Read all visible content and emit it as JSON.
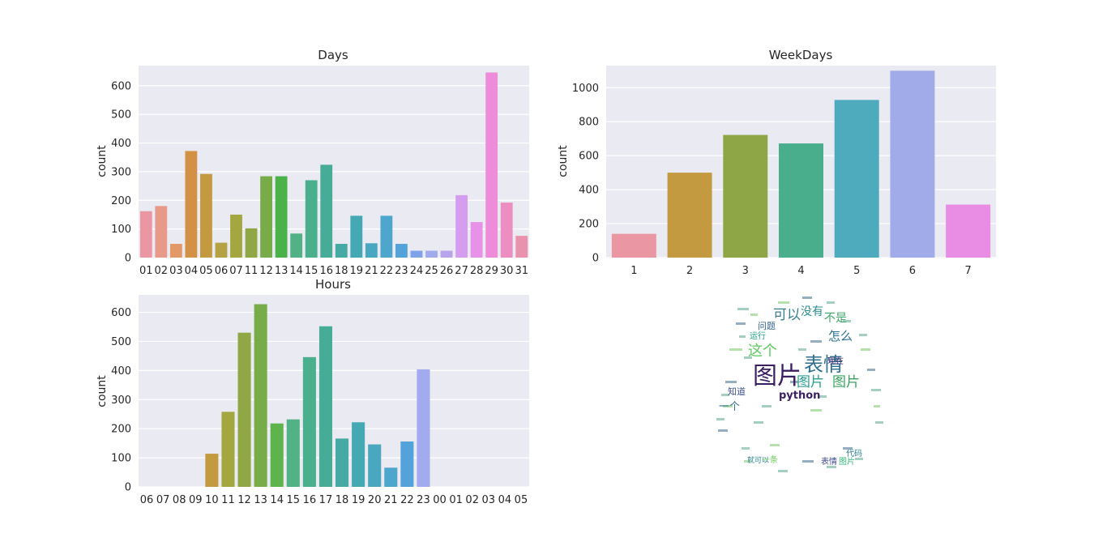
{
  "chart_data": [
    {
      "type": "bar",
      "title": "Days",
      "xlabel": "",
      "ylabel": "count",
      "ylim": [
        0,
        670
      ],
      "yticks": [
        0,
        100,
        200,
        300,
        400,
        500,
        600
      ],
      "categories": [
        "01",
        "02",
        "03",
        "04",
        "05",
        "06",
        "07",
        "11",
        "12",
        "13",
        "14",
        "15",
        "16",
        "18",
        "19",
        "21",
        "22",
        "23",
        "24",
        "25",
        "26",
        "27",
        "28",
        "29",
        "30",
        "31"
      ],
      "values": [
        162,
        180,
        48,
        372,
        292,
        52,
        150,
        102,
        284,
        284,
        84,
        270,
        324,
        48,
        146,
        50,
        146,
        48,
        24,
        24,
        24,
        218,
        124,
        646,
        192,
        76
      ],
      "colors": [
        "#ea96a3",
        "#e8998a",
        "#e39867",
        "#d39145",
        "#c39a40",
        "#b4a244",
        "#a4a63f",
        "#8fa744",
        "#78ac48",
        "#4bb24a",
        "#52b285",
        "#4aaf8d",
        "#46ac97",
        "#44aaa3",
        "#44a9b2",
        "#49a8bf",
        "#4ea6cc",
        "#54a2da",
        "#7ea3e8",
        "#a1abed",
        "#b8a4eb",
        "#d49df0",
        "#e791e8",
        "#ee8cd9",
        "#ec8ec2",
        "#ea92ad"
      ],
      "grid": true
    },
    {
      "type": "bar",
      "title": "WeekDays",
      "xlabel": "",
      "ylabel": "count",
      "ylim": [
        0,
        1130
      ],
      "yticks": [
        0,
        200,
        400,
        600,
        800,
        1000
      ],
      "categories": [
        "1",
        "2",
        "3",
        "4",
        "5",
        "6",
        "7"
      ],
      "values": [
        140,
        500,
        722,
        672,
        928,
        1100,
        312
      ],
      "colors": [
        "#ea96a3",
        "#c39a40",
        "#8ea645",
        "#48ae8b",
        "#4dabbd",
        "#a1abea",
        "#e88ce4"
      ],
      "grid": true
    },
    {
      "type": "bar",
      "title": "Hours",
      "xlabel": "",
      "ylabel": "count",
      "ylim": [
        0,
        660
      ],
      "yticks": [
        0,
        100,
        200,
        300,
        400,
        500,
        600
      ],
      "categories": [
        "06",
        "07",
        "08",
        "09",
        "10",
        "11",
        "12",
        "13",
        "14",
        "15",
        "16",
        "17",
        "18",
        "19",
        "20",
        "21",
        "22",
        "23",
        "00",
        "01",
        "02",
        "03",
        "04",
        "05"
      ],
      "values": [
        0,
        0,
        0,
        0,
        114,
        258,
        530,
        628,
        218,
        232,
        446,
        552,
        166,
        222,
        146,
        66,
        156,
        404,
        0,
        0,
        0,
        0,
        0,
        0
      ],
      "colors": [
        "#ea96a3",
        "#e8998a",
        "#e39867",
        "#d39145",
        "#c39a40",
        "#a4a63f",
        "#8fa744",
        "#78ac48",
        "#5db34c",
        "#52b285",
        "#4aaf8d",
        "#46ac97",
        "#44aaa3",
        "#44a9b2",
        "#49a8bf",
        "#4ea6cc",
        "#54a2da",
        "#a1abed",
        "#b8a4eb",
        "#d49df0",
        "#e791e8",
        "#ee8cd9",
        "#ec8ec2",
        "#ea92ad"
      ],
      "grid": true
    }
  ],
  "wordcloud": {
    "words": [
      {
        "text": "图片",
        "size": 30,
        "color": "#3b1f63"
      },
      {
        "text": "表情",
        "size": 24,
        "color": "#2d6e8e"
      },
      {
        "text": "图片",
        "size": 17,
        "color": "#2a9d8f"
      },
      {
        "text": "图片",
        "size": 17,
        "color": "#3aa35f"
      },
      {
        "text": "python",
        "size": 13,
        "color": "#3b1f63"
      },
      {
        "text": "可以",
        "size": 17,
        "color": "#3a7f8f"
      },
      {
        "text": "没有",
        "size": 14,
        "color": "#2b8c8c"
      },
      {
        "text": "不是",
        "size": 14,
        "color": "#3fa46a"
      },
      {
        "text": "问题",
        "size": 11,
        "color": "#33638d"
      },
      {
        "text": "这个",
        "size": 18,
        "color": "#5ec962"
      },
      {
        "text": "怎么",
        "size": 15,
        "color": "#2c728e"
      },
      {
        "text": "一个",
        "size": 13,
        "color": "#2d708e"
      },
      {
        "text": "知道",
        "size": 11,
        "color": "#3b518b"
      },
      {
        "text": "代码",
        "size": 10,
        "color": "#287d8e"
      },
      {
        "text": "表情",
        "size": 10,
        "color": "#3e4a89"
      },
      {
        "text": "图片",
        "size": 10,
        "color": "#35b779"
      },
      {
        "text": "运行",
        "size": 10,
        "color": "#1f9e89"
      },
      {
        "text": "现在",
        "size": 10,
        "color": "#482878"
      },
      {
        "text": "就可以",
        "size": 9,
        "color": "#26828e"
      },
      {
        "text": "一条",
        "size": 10,
        "color": "#6ccd5a"
      }
    ]
  }
}
